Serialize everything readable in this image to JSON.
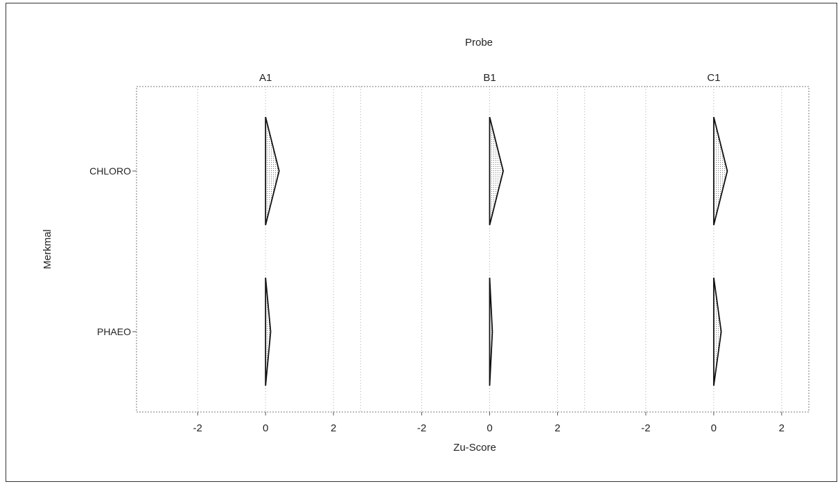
{
  "chart_data": {
    "type": "area",
    "title": "Probe",
    "xlabel": "Zu-Score",
    "ylabel": "Merkmal",
    "panels": [
      "A1",
      "B1",
      "C1"
    ],
    "rows": [
      "CHLORO",
      "PHAEO"
    ],
    "x_ticks": [
      -2,
      0,
      2
    ],
    "xlim": [
      -3.8,
      2.8
    ],
    "grid": true,
    "series": [
      {
        "panel": "A1",
        "values": [
          0.4,
          0.15
        ]
      },
      {
        "panel": "B1",
        "values": [
          0.4,
          0.08
        ]
      },
      {
        "panel": "C1",
        "values": [
          0.4,
          0.22
        ]
      }
    ]
  }
}
